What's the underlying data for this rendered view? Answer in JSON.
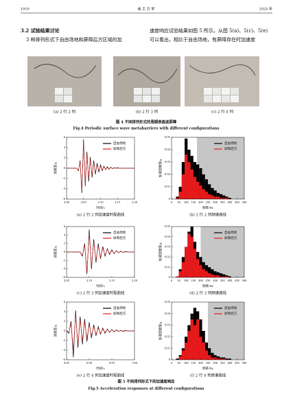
{
  "header": {
    "page": "1910",
    "journal": "岩 土 力 学",
    "year": "2025 年"
  },
  "section_title": "3.2  试验结果讨论",
  "text_left": [
    "3 种排列形式下自由场地和屏障后方区域的加"
  ],
  "text_right": [
    "速度响应试验结果如图 5 所示。从图 5(a)、5(c)、5(e)",
    "可以看出，相比于自由场地，有屏障存在时加速度"
  ],
  "figure4": {
    "captions": [
      "(a) 2 行 2 列",
      "(b) 2 行 3 列",
      "(c) 2 行 4 列"
    ],
    "caption_cn": "图 4   不同排列形式的周期表面波屏障",
    "caption_en": "Fig.4   Periodic surface wave metabarriers with different configurations"
  },
  "figure5": {
    "caption_cn": "图 5   不同排列形式下的加速度响应",
    "caption_en": "Fig.5   Acceleration responses at different configurations"
  },
  "chart_data": [
    {
      "type": "line",
      "caption": "(a) 2 行 2 列加速度时程曲线",
      "xlabel": "时间/s",
      "ylabel": "加速度/g",
      "x": [
        2,
        2.005,
        2.01,
        2.015,
        2.02,
        2.025,
        2.03,
        2.035,
        2.04,
        2.045,
        2.05,
        2.055,
        2.06,
        2.065,
        2.07,
        2.075,
        2.08,
        2.085,
        2.09,
        2.095,
        2.1,
        2.105,
        2.11,
        2.115,
        2.12,
        2.125,
        2.13,
        2.135,
        2.14,
        2.145,
        2.15,
        2.155,
        2.16,
        2.165,
        2.17,
        2.175,
        2.18,
        2.185,
        2.19,
        2.195,
        2.2
      ],
      "series": [
        {
          "name": "自由场地",
          "color": "#000000",
          "values": [
            0,
            0,
            0,
            0,
            0,
            0,
            0,
            -0.5,
            1.5,
            -4.8,
            5.6,
            -3.5,
            3.2,
            -2.6,
            2.2,
            -1.8,
            1.5,
            -1.2,
            1.0,
            -0.8,
            0.7,
            -0.5,
            0.4,
            -0.3,
            0.3,
            -0.2,
            0.2,
            -0.1,
            0.1,
            0,
            0.1,
            0,
            0,
            0,
            0,
            0,
            0,
            0,
            0,
            0,
            0
          ]
        },
        {
          "name": "屏障后方",
          "color": "#e8191a",
          "values": [
            0,
            0,
            0,
            0,
            0,
            0,
            0,
            -0.4,
            1.2,
            -4.2,
            4.9,
            -3.0,
            2.6,
            -2.0,
            1.7,
            -1.3,
            1.0,
            -0.8,
            0.6,
            -0.5,
            0.4,
            -0.3,
            0.2,
            -0.2,
            0.1,
            -0.1,
            0.1,
            0,
            0,
            0,
            0,
            0,
            0,
            0,
            0,
            0,
            0,
            0,
            0,
            0,
            0
          ]
        }
      ],
      "xlim": [
        2,
        2.2
      ],
      "ylim": [
        -6,
        6
      ],
      "xticks": [
        {
          "value": 2,
          "label": "2.00"
        },
        2.05,
        {
          "value": 2.1,
          "label": "2.10"
        },
        2.15,
        {
          "value": 2.2,
          "label": "2.20"
        }
      ],
      "yticks": [
        -6,
        -4,
        -2,
        0,
        2,
        4,
        6
      ]
    },
    {
      "type": "bar",
      "caption": "(b) 2 行 2 列频谱曲线",
      "xlabel": "频率/Hz",
      "ylabel": "加速度幅值/g",
      "x": [
        40,
        60,
        80,
        100,
        120,
        140,
        160,
        180,
        200,
        220,
        240,
        260,
        280,
        300,
        320,
        340,
        360,
        380,
        400
      ],
      "series": [
        {
          "name": "自由场地",
          "color": "#000000",
          "values": [
            0.002,
            0.01,
            0.03,
            0.049,
            0.04,
            0.035,
            0.03,
            0.028,
            0.025,
            0.02,
            0.016,
            0.012,
            0.009,
            0.007,
            0.005,
            0.004,
            0.003,
            0.002,
            0.001
          ]
        },
        {
          "name": "屏障后方",
          "color": "#e8191a",
          "values": [
            0.001,
            0.006,
            0.02,
            0.036,
            0.03,
            0.024,
            0.018,
            0.014,
            0.011,
            0.008,
            0.006,
            0.004,
            0.003,
            0.002,
            0.002,
            0.001,
            0.001,
            0.001,
            0
          ]
        }
      ],
      "shade_x": [
        175,
        500
      ],
      "xlim": [
        0,
        500
      ],
      "ylim": [
        0,
        0.05
      ],
      "xticks": [
        0,
        50,
        100,
        150,
        200,
        250,
        300,
        350,
        400,
        450,
        500
      ],
      "yticks": [
        0,
        0.01,
        0.02,
        0.03,
        0.04,
        0.05
      ]
    },
    {
      "type": "line",
      "caption": "(c) 2 行 3 列加速度时程曲线",
      "xlabel": "时间/s",
      "ylabel": "加速度/g",
      "x": [
        2.05,
        2.055,
        2.06,
        2.065,
        2.07,
        2.075,
        2.08,
        2.085,
        2.09,
        2.095,
        2.1,
        2.105,
        2.11,
        2.115,
        2.12,
        2.125,
        2.13,
        2.135,
        2.14,
        2.145,
        2.15,
        2.155,
        2.16,
        2.165,
        2.17,
        2.175,
        2.18,
        2.185,
        2.19,
        2.195,
        2.2
      ],
      "series": [
        {
          "name": "自由场地",
          "color": "#000000",
          "values": [
            0,
            0,
            0,
            0,
            0,
            0,
            0,
            -1,
            2,
            -5.2,
            5.3,
            -4.0,
            3.0,
            -2.5,
            2.0,
            -1.6,
            1.3,
            -1.0,
            0.8,
            -0.6,
            0.5,
            -0.4,
            0.3,
            -0.2,
            0.2,
            -0.1,
            0.1,
            0,
            0,
            0,
            0
          ]
        },
        {
          "name": "屏障后方",
          "color": "#e8191a",
          "values": [
            0,
            0,
            0,
            0,
            0,
            0,
            0,
            -0.8,
            1.6,
            -4.6,
            4.4,
            -3.4,
            2.4,
            -2.0,
            1.5,
            -1.2,
            0.9,
            -0.7,
            0.6,
            -0.4,
            0.3,
            -0.3,
            0.2,
            -0.1,
            0.1,
            -0.1,
            0,
            0,
            0,
            0,
            0
          ]
        }
      ],
      "xlim": [
        2.05,
        2.2
      ],
      "ylim": [
        -6,
        6
      ],
      "xticks": [
        2.05,
        {
          "value": 2.1,
          "label": "2.10"
        },
        2.15,
        {
          "value": 2.2,
          "label": "2.20"
        }
      ],
      "yticks": [
        -6,
        -4,
        -2,
        0,
        2,
        4,
        6
      ]
    },
    {
      "type": "bar",
      "caption": "(d) 2 行 3 列频谱曲线",
      "xlabel": "频率/Hz",
      "ylabel": "加速度幅值/g",
      "x": [
        40,
        60,
        80,
        100,
        120,
        140,
        160,
        180,
        200,
        220,
        240,
        260,
        280,
        300,
        320,
        340,
        360,
        380,
        400
      ],
      "series": [
        {
          "name": "自由场地",
          "color": "#000000",
          "values": [
            0.001,
            0.008,
            0.02,
            0.03,
            0.045,
            0.05,
            0.035,
            0.025,
            0.02,
            0.015,
            0.012,
            0.01,
            0.008,
            0.006,
            0.005,
            0.004,
            0.003,
            0.002,
            0.001
          ]
        },
        {
          "name": "屏障后方",
          "color": "#e8191a",
          "values": [
            0.001,
            0.006,
            0.015,
            0.03,
            0.043,
            0.04,
            0.028,
            0.018,
            0.012,
            0.008,
            0.006,
            0.004,
            0.003,
            0.002,
            0.002,
            0.001,
            0.001,
            0.001,
            0
          ]
        }
      ],
      "shade_x": [
        200,
        500
      ],
      "xlim": [
        0,
        500
      ],
      "ylim": [
        0,
        0.05
      ],
      "xticks": [
        0,
        50,
        100,
        150,
        200,
        250,
        300,
        350,
        400,
        450,
        500
      ],
      "yticks": [
        0,
        0.01,
        0.02,
        0.03,
        0.04,
        0.05
      ]
    },
    {
      "type": "line",
      "caption": "(e) 2 行 4 列加速度时程曲线",
      "xlabel": "时间/s",
      "ylabel": "加速度/g",
      "x": [
        0.85,
        0.855,
        0.86,
        0.865,
        0.87,
        0.875,
        0.88,
        0.885,
        0.89,
        0.895,
        0.9,
        0.905,
        0.91,
        0.915,
        0.92,
        0.925,
        0.93,
        0.935,
        0.94,
        0.945,
        0.95,
        0.955,
        0.96,
        0.965,
        0.97,
        0.975,
        0.98,
        0.985,
        0.99,
        0.995,
        1
      ],
      "series": [
        {
          "name": "自由场地",
          "color": "#000000",
          "values": [
            0,
            -0.5,
            2,
            -5.5,
            4.3,
            -3.5,
            3.0,
            -2.8,
            2.5,
            -2.2,
            1.8,
            -1.5,
            1.3,
            -1.0,
            0.9,
            -0.7,
            0.6,
            -0.5,
            0.4,
            -0.3,
            0.3,
            -0.2,
            0.2,
            -0.1,
            0.1,
            -0.1,
            0.1,
            0,
            0,
            0,
            0
          ]
        },
        {
          "name": "屏障后方",
          "color": "#e8191a",
          "values": [
            0,
            -0.3,
            1.5,
            -4.0,
            3.5,
            -2.8,
            2.3,
            -2.0,
            1.8,
            -1.5,
            1.3,
            -1.0,
            0.9,
            -0.7,
            0.6,
            -0.5,
            0.4,
            -0.3,
            0.3,
            -0.2,
            0.2,
            -0.1,
            0.1,
            -0.1,
            0.1,
            0,
            0,
            0,
            0,
            0,
            0
          ]
        }
      ],
      "xlim": [
        0.85,
        1
      ],
      "ylim": [
        -6,
        6
      ],
      "xticks": [
        0.85,
        {
          "value": 0.9,
          "label": "0.90"
        },
        0.95,
        {
          "value": 1,
          "label": "1.00"
        }
      ],
      "yticks": [
        -6,
        -4,
        -2,
        0,
        2,
        4,
        6
      ]
    },
    {
      "type": "bar",
      "caption": "(f) 2 行 4 列频谱曲线",
      "xlabel": "频率/Hz",
      "ylabel": "加速度幅值/g",
      "x": [
        40,
        60,
        80,
        100,
        120,
        140,
        160,
        180,
        200,
        220,
        240,
        260,
        280,
        300,
        320,
        340,
        360,
        380,
        400
      ],
      "series": [
        {
          "name": "自由场地",
          "color": "#000000",
          "values": [
            0.001,
            0.004,
            0.01,
            0.02,
            0.03,
            0.04,
            0.045,
            0.042,
            0.035,
            0.025,
            0.015,
            0.01,
            0.006,
            0.004,
            0.003,
            0.002,
            0.002,
            0.001,
            0.001
          ]
        },
        {
          "name": "屏障后方",
          "color": "#e8191a",
          "values": [
            0,
            0.003,
            0.008,
            0.015,
            0.025,
            0.035,
            0.03,
            0.035,
            0.02,
            0.015,
            0.008,
            0.004,
            0.002,
            0.002,
            0.001,
            0.001,
            0.001,
            0,
            0
          ]
        }
      ],
      "shade_x": [
        250,
        500
      ],
      "xlim": [
        0,
        500
      ],
      "ylim": [
        0,
        0.05
      ],
      "xticks": [
        0,
        50,
        100,
        150,
        200,
        250,
        300,
        350,
        400,
        450,
        500
      ],
      "yticks": [
        0,
        0.01,
        0.02,
        0.03,
        0.04,
        0.05
      ]
    }
  ]
}
